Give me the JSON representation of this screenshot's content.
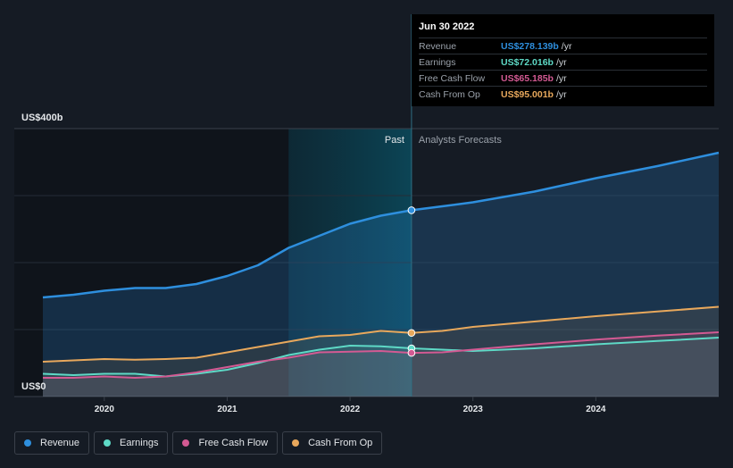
{
  "tooltip": {
    "date": "Jun 30 2022",
    "rows": [
      {
        "name": "Revenue",
        "value": "US$278.139b",
        "unit": "/yr",
        "color": "#2e8fde"
      },
      {
        "name": "Earnings",
        "value": "US$72.016b",
        "unit": "/yr",
        "color": "#5ed9c6"
      },
      {
        "name": "Free Cash Flow",
        "value": "US$65.185b",
        "unit": "/yr",
        "color": "#d35a93"
      },
      {
        "name": "Cash From Op",
        "value": "US$95.001b",
        "unit": "/yr",
        "color": "#e8a85c"
      }
    ]
  },
  "legend": [
    {
      "name": "Revenue",
      "color": "#2e8fde"
    },
    {
      "name": "Earnings",
      "color": "#5ed9c6"
    },
    {
      "name": "Free Cash Flow",
      "color": "#d35a93"
    },
    {
      "name": "Cash From Op",
      "color": "#e8a85c"
    }
  ],
  "chart_data": {
    "type": "line",
    "y_top_label": "US$400b",
    "y_bottom_label": "US$0",
    "ylim": [
      0,
      400
    ],
    "xlim": [
      2019.5,
      2025.0
    ],
    "x_ticks": [
      2020,
      2021,
      2022,
      2023,
      2024
    ],
    "x_tick_labels": [
      "2020",
      "2021",
      "2022",
      "2023",
      "2024"
    ],
    "past_label": "Past",
    "forecast_label": "Analysts Forecasts",
    "past_shade_start": 2021.5,
    "divider_x": 2022.5,
    "series": [
      {
        "name": "Revenue",
        "color": "#2e8fde",
        "points": [
          [
            2019.5,
            148
          ],
          [
            2019.75,
            152
          ],
          [
            2020,
            158
          ],
          [
            2020.25,
            162
          ],
          [
            2020.5,
            162
          ],
          [
            2020.75,
            168
          ],
          [
            2021,
            180
          ],
          [
            2021.25,
            196
          ],
          [
            2021.5,
            222
          ],
          [
            2021.75,
            240
          ],
          [
            2022,
            258
          ],
          [
            2022.25,
            270
          ],
          [
            2022.5,
            278.139
          ],
          [
            2022.75,
            284
          ],
          [
            2023,
            290
          ],
          [
            2023.5,
            306
          ],
          [
            2024,
            326
          ],
          [
            2024.5,
            344
          ],
          [
            2025,
            364
          ]
        ]
      },
      {
        "name": "Earnings",
        "color": "#5ed9c6",
        "points": [
          [
            2019.5,
            34
          ],
          [
            2019.75,
            32
          ],
          [
            2020,
            34
          ],
          [
            2020.25,
            34
          ],
          [
            2020.5,
            30
          ],
          [
            2020.75,
            34
          ],
          [
            2021,
            40
          ],
          [
            2021.25,
            50
          ],
          [
            2021.5,
            62
          ],
          [
            2021.75,
            70
          ],
          [
            2022,
            76
          ],
          [
            2022.25,
            75
          ],
          [
            2022.5,
            72.016
          ],
          [
            2022.75,
            70
          ],
          [
            2023,
            68
          ],
          [
            2023.5,
            72
          ],
          [
            2024,
            78
          ],
          [
            2024.5,
            83
          ],
          [
            2025,
            88
          ]
        ]
      },
      {
        "name": "Free Cash Flow",
        "color": "#d35a93",
        "points": [
          [
            2019.5,
            28
          ],
          [
            2019.75,
            28
          ],
          [
            2020,
            30
          ],
          [
            2020.25,
            28
          ],
          [
            2020.5,
            30
          ],
          [
            2020.75,
            36
          ],
          [
            2021,
            44
          ],
          [
            2021.25,
            52
          ],
          [
            2021.5,
            58
          ],
          [
            2021.75,
            66
          ],
          [
            2022,
            67
          ],
          [
            2022.25,
            68
          ],
          [
            2022.5,
            65.185
          ],
          [
            2022.75,
            66
          ],
          [
            2023,
            70
          ],
          [
            2023.5,
            78
          ],
          [
            2024,
            85
          ],
          [
            2024.5,
            91
          ],
          [
            2025,
            96
          ]
        ]
      },
      {
        "name": "Cash From Op",
        "color": "#e8a85c",
        "points": [
          [
            2019.5,
            52
          ],
          [
            2019.75,
            54
          ],
          [
            2020,
            56
          ],
          [
            2020.25,
            55
          ],
          [
            2020.5,
            56
          ],
          [
            2020.75,
            58
          ],
          [
            2021,
            66
          ],
          [
            2021.25,
            74
          ],
          [
            2021.5,
            82
          ],
          [
            2021.75,
            90
          ],
          [
            2022,
            92
          ],
          [
            2022.25,
            98
          ],
          [
            2022.5,
            95.001
          ],
          [
            2022.75,
            98
          ],
          [
            2023,
            104
          ],
          [
            2023.5,
            112
          ],
          [
            2024,
            120
          ],
          [
            2024.5,
            127
          ],
          [
            2025,
            134
          ]
        ]
      }
    ]
  }
}
